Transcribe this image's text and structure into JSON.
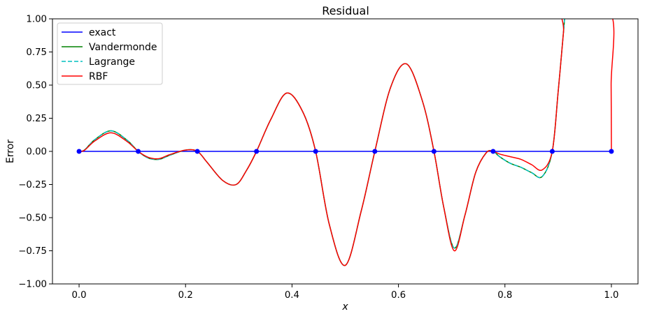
{
  "chart_data": {
    "type": "line",
    "title": "Residual",
    "xlabel": "x",
    "ylabel": "Error",
    "xlim": [
      -0.05,
      1.05
    ],
    "ylim": [
      -1.0,
      1.0
    ],
    "xticks": [
      0.0,
      0.2,
      0.4,
      0.6,
      0.8,
      1.0
    ],
    "xtick_labels": [
      "0.0",
      "0.2",
      "0.4",
      "0.6",
      "0.8",
      "1.0"
    ],
    "yticks": [
      -1.0,
      -0.75,
      -0.5,
      -0.25,
      0.0,
      0.25,
      0.5,
      0.75,
      1.0
    ],
    "ytick_labels": [
      "−1.00",
      "−0.75",
      "−0.50",
      "−0.25",
      "0.00",
      "0.25",
      "0.50",
      "0.75",
      "1.00"
    ],
    "grid": false,
    "legend_position": "top-left",
    "nodes": {
      "x": [
        0.0,
        0.1111,
        0.2222,
        0.3333,
        0.4444,
        0.5556,
        0.6667,
        0.7778,
        0.8889,
        1.0
      ],
      "y": [
        0,
        0,
        0,
        0,
        0,
        0,
        0,
        0,
        0,
        0
      ],
      "color": "#0000ff"
    },
    "series": [
      {
        "name": "exact",
        "color": "#0000ff",
        "dash": "solid",
        "x": [
          0.0,
          1.0
        ],
        "y": [
          0.0,
          0.0
        ]
      },
      {
        "name": "Vandermonde",
        "color": "#008000",
        "dash": "solid",
        "x": [
          0.0,
          0.01,
          0.03,
          0.06,
          0.09,
          0.1111,
          0.13,
          0.15,
          0.17,
          0.2,
          0.2222,
          0.24,
          0.27,
          0.295,
          0.315,
          0.3333,
          0.36,
          0.39,
          0.42,
          0.4444,
          0.47,
          0.5,
          0.53,
          0.5556,
          0.585,
          0.615,
          0.645,
          0.6667,
          0.685,
          0.705,
          0.725,
          0.745,
          0.765,
          0.7778,
          0.79,
          0.81,
          0.83,
          0.85,
          0.87,
          0.8889,
          0.9,
          0.91,
          0.913
        ],
        "y": [
          0.0,
          0.01,
          0.09,
          0.155,
          0.085,
          0.0,
          -0.05,
          -0.06,
          -0.03,
          0.01,
          0.0,
          -0.08,
          -0.22,
          -0.25,
          -0.14,
          0.0,
          0.24,
          0.44,
          0.3,
          0.0,
          -0.55,
          -0.86,
          -0.45,
          0.0,
          0.48,
          0.66,
          0.38,
          0.0,
          -0.42,
          -0.73,
          -0.48,
          -0.16,
          -0.01,
          0.0,
          -0.04,
          -0.09,
          -0.12,
          -0.16,
          -0.19,
          0.0,
          0.45,
          0.9,
          1.05
        ]
      },
      {
        "name": "Lagrange",
        "color": "#00bfbf",
        "dash": "dashed",
        "x": [
          0.0,
          0.01,
          0.03,
          0.06,
          0.09,
          0.1111,
          0.13,
          0.15,
          0.17,
          0.2,
          0.2222,
          0.24,
          0.27,
          0.295,
          0.315,
          0.3333,
          0.36,
          0.39,
          0.42,
          0.4444,
          0.47,
          0.5,
          0.53,
          0.5556,
          0.585,
          0.615,
          0.645,
          0.6667,
          0.685,
          0.705,
          0.725,
          0.745,
          0.765,
          0.7778,
          0.79,
          0.81,
          0.83,
          0.85,
          0.87,
          0.8889,
          0.9,
          0.91,
          0.913
        ],
        "y": [
          0.0,
          0.01,
          0.09,
          0.155,
          0.085,
          0.0,
          -0.05,
          -0.06,
          -0.03,
          0.01,
          0.0,
          -0.08,
          -0.22,
          -0.25,
          -0.14,
          0.0,
          0.24,
          0.44,
          0.3,
          0.0,
          -0.55,
          -0.86,
          -0.45,
          0.0,
          0.48,
          0.66,
          0.38,
          0.0,
          -0.42,
          -0.73,
          -0.48,
          -0.16,
          -0.01,
          0.0,
          -0.04,
          -0.09,
          -0.12,
          -0.16,
          -0.19,
          0.0,
          0.45,
          0.9,
          1.05
        ]
      },
      {
        "name": "RBF",
        "color": "#ff0000",
        "dash": "solid",
        "x": [
          0.0,
          0.01,
          0.03,
          0.06,
          0.09,
          0.1111,
          0.13,
          0.15,
          0.17,
          0.2,
          0.2222,
          0.24,
          0.27,
          0.295,
          0.315,
          0.3333,
          0.36,
          0.39,
          0.42,
          0.4444,
          0.47,
          0.5,
          0.53,
          0.5556,
          0.585,
          0.615,
          0.645,
          0.6667,
          0.685,
          0.705,
          0.725,
          0.745,
          0.765,
          0.7778,
          0.79,
          0.81,
          0.83,
          0.85,
          0.87,
          0.8889,
          0.9,
          0.91,
          0.913,
          0.998,
          0.9995,
          1.0
        ],
        "y": [
          0.0,
          0.008,
          0.08,
          0.14,
          0.075,
          0.0,
          -0.045,
          -0.055,
          -0.025,
          0.01,
          0.0,
          -0.08,
          -0.22,
          -0.25,
          -0.14,
          0.0,
          0.24,
          0.44,
          0.3,
          0.0,
          -0.55,
          -0.86,
          -0.45,
          0.0,
          0.48,
          0.66,
          0.38,
          0.0,
          -0.42,
          -0.75,
          -0.48,
          -0.16,
          -0.01,
          0.0,
          -0.02,
          -0.04,
          -0.06,
          -0.1,
          -0.14,
          0.0,
          0.45,
          0.9,
          1.05,
          1.05,
          0.5,
          0.0
        ]
      }
    ]
  }
}
